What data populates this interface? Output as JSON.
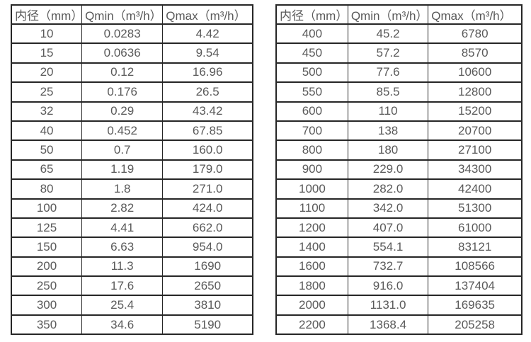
{
  "colors": {
    "background": "#ffffff",
    "border": "#262626",
    "text": "#595959"
  },
  "chart_data": [
    {
      "type": "table",
      "name": "flow-range-table-small-diameters",
      "columns": [
        "内径（mm）",
        "Qmin（m³/h）",
        "Qmax（m³/h）"
      ],
      "rows": [
        [
          "10",
          "0.0283",
          "4.42"
        ],
        [
          "15",
          "0.0636",
          "9.54"
        ],
        [
          "20",
          "0.12",
          "16.96"
        ],
        [
          "25",
          "0.176",
          "26.5"
        ],
        [
          "32",
          "0.29",
          "43.42"
        ],
        [
          "40",
          "0.452",
          "67.85"
        ],
        [
          "50",
          "0.7",
          "160.0"
        ],
        [
          "65",
          "1.19",
          "179.0"
        ],
        [
          "80",
          "1.8",
          "271.0"
        ],
        [
          "100",
          "2.82",
          "424.0"
        ],
        [
          "125",
          "4.41",
          "662.0"
        ],
        [
          "150",
          "6.63",
          "954.0"
        ],
        [
          "200",
          "11.3",
          "1690"
        ],
        [
          "250",
          "17.6",
          "2650"
        ],
        [
          "300",
          "25.4",
          "3810"
        ],
        [
          "350",
          "34.6",
          "5190"
        ]
      ]
    },
    {
      "type": "table",
      "name": "flow-range-table-large-diameters",
      "columns": [
        "内径（mm）",
        "Qmin（m³/h）",
        "Qmax（m³/h）"
      ],
      "rows": [
        [
          "400",
          "45.2",
          "6780"
        ],
        [
          "450",
          "57.2",
          "8570"
        ],
        [
          "500",
          "77.6",
          "10600"
        ],
        [
          "550",
          "85.5",
          "12800"
        ],
        [
          "600",
          "110",
          "15200"
        ],
        [
          "700",
          "138",
          "20700"
        ],
        [
          "800",
          "180",
          "27100"
        ],
        [
          "900",
          "229.0",
          "34300"
        ],
        [
          "1000",
          "282.0",
          "42400"
        ],
        [
          "1100",
          "342.0",
          "51300"
        ],
        [
          "1200",
          "407.0",
          "61000"
        ],
        [
          "1400",
          "554.1",
          "83121"
        ],
        [
          "1600",
          "732.7",
          "108566"
        ],
        [
          "1800",
          "916.0",
          "137404"
        ],
        [
          "2000",
          "1131.0",
          "169635"
        ],
        [
          "2200",
          "1368.4",
          "205258"
        ]
      ]
    }
  ]
}
